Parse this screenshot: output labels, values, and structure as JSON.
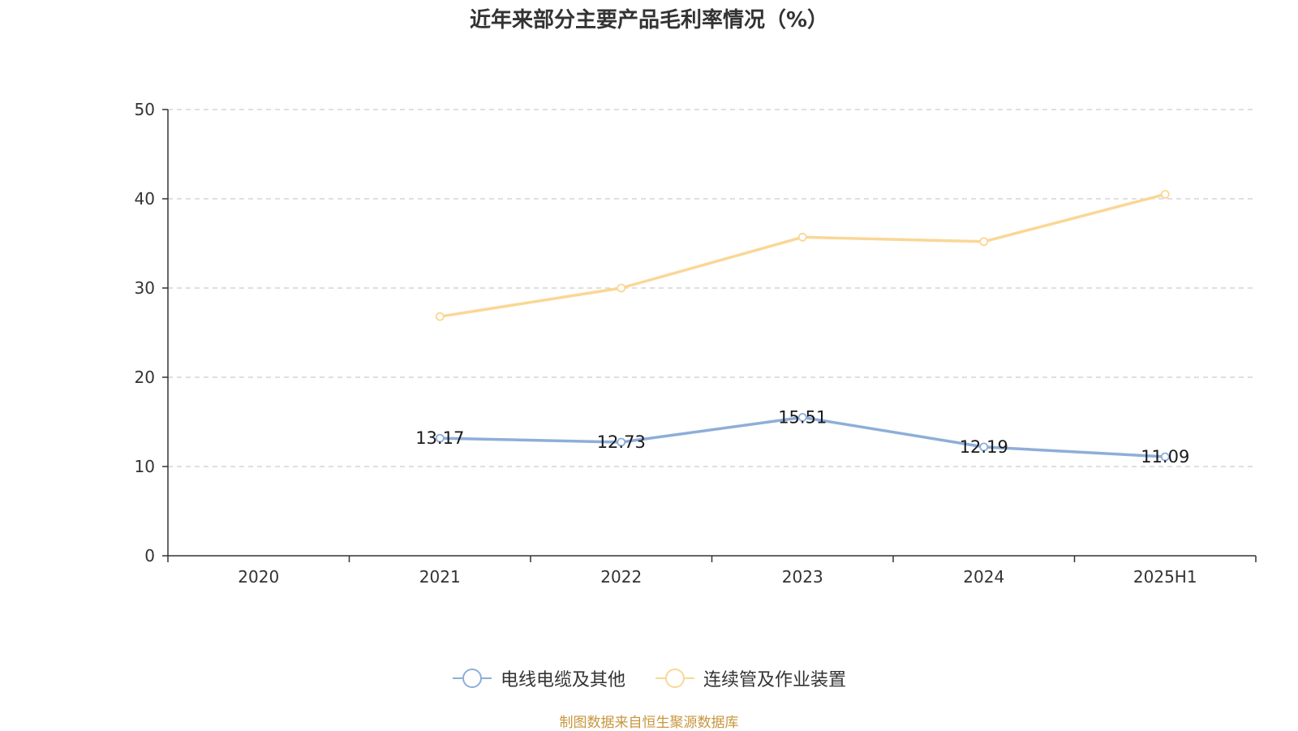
{
  "title": "近年来部分主要产品毛利率情况（%）",
  "source_note": "制图数据来自恒生聚源数据库",
  "chart_data": {
    "type": "line",
    "categories": [
      "2020",
      "2021",
      "2022",
      "2023",
      "2024",
      "2025H1"
    ],
    "ylim": [
      0,
      50
    ],
    "yticks": [
      0,
      10,
      20,
      30,
      40,
      50
    ],
    "grid": true,
    "legend_position": "bottom",
    "series": [
      {
        "name": "电线电缆及其他",
        "color": "#8eaed8",
        "values": [
          null,
          13.17,
          12.73,
          15.51,
          12.19,
          11.09
        ],
        "labels": [
          "",
          "13.17",
          "12.73",
          "15.51",
          "12.19",
          "11.09"
        ]
      },
      {
        "name": "连续管及作业装置",
        "color": "#fad795",
        "values": [
          null,
          26.8,
          30.0,
          35.7,
          35.2,
          40.5
        ],
        "labels": []
      }
    ]
  }
}
